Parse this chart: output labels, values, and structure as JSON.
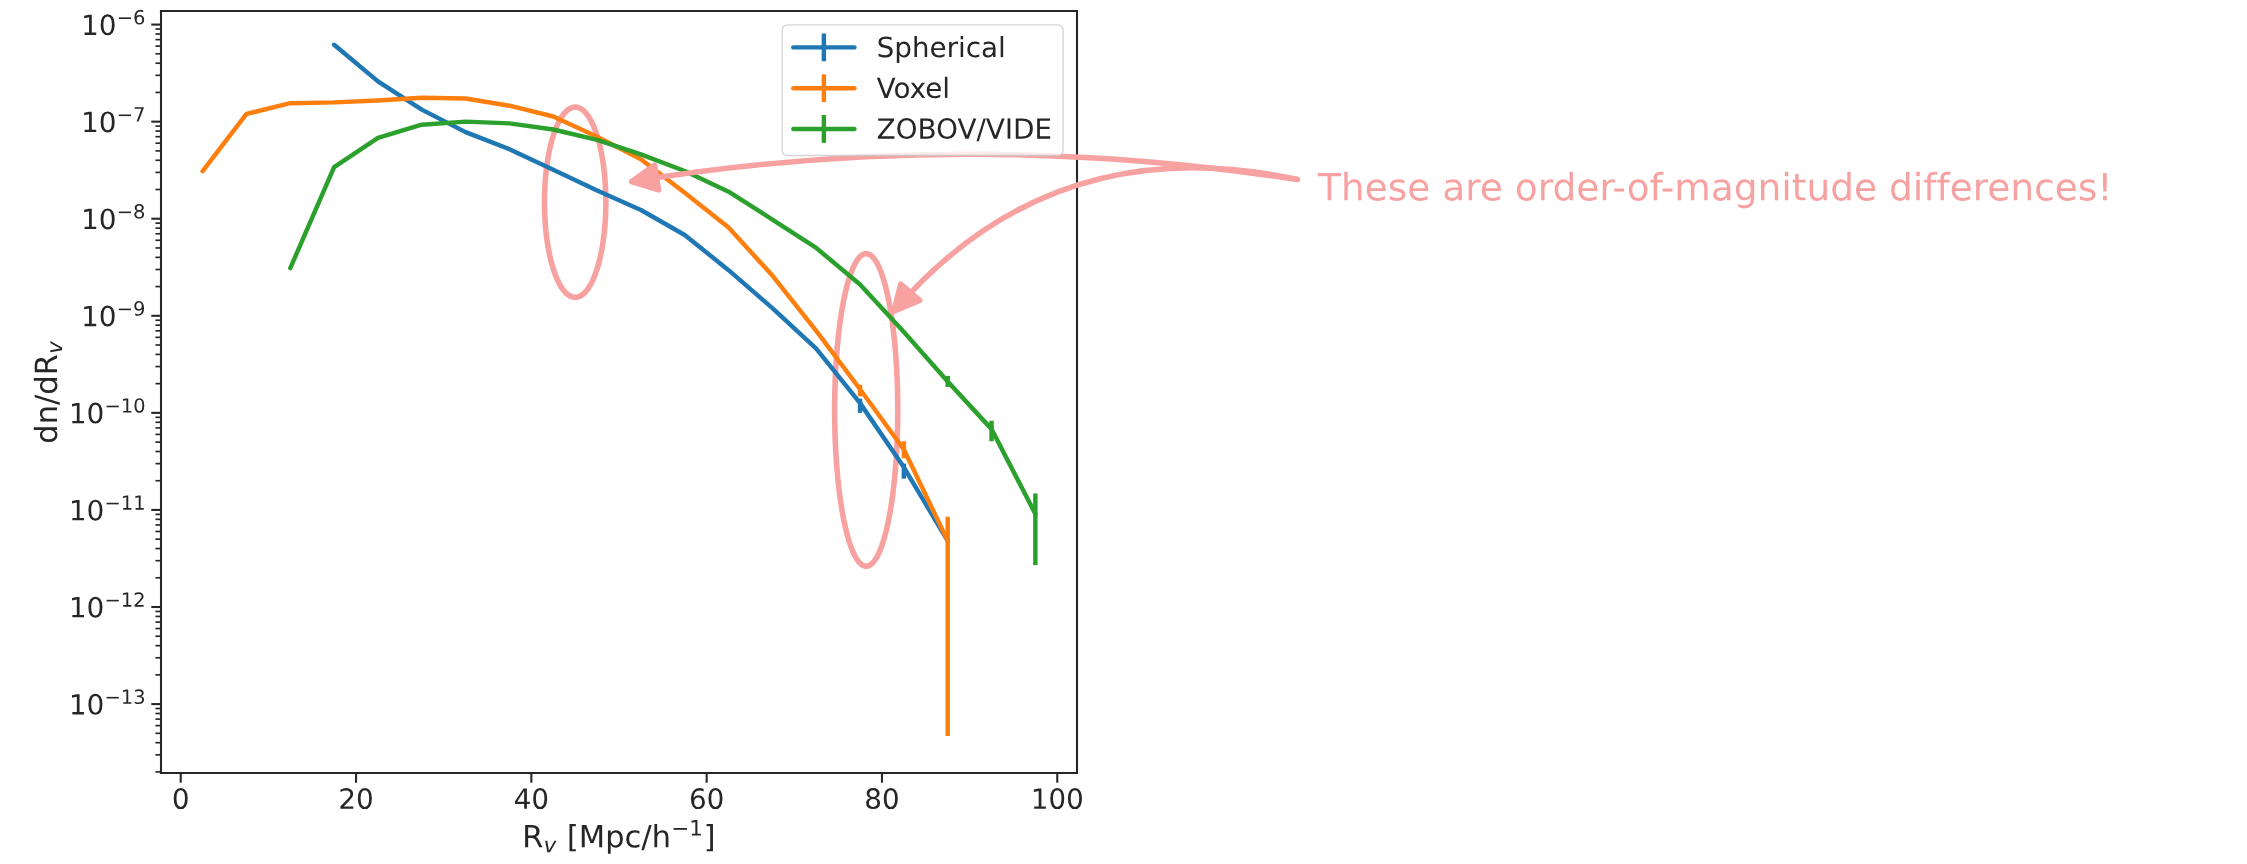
{
  "chart_data": {
    "type": "line",
    "xlabel": "R$_{v}$ [Mpc/h$^{−1}$]",
    "ylabel": "dn/dR$_{v}$",
    "log": "y",
    "grid": false,
    "legend": "top right",
    "xlim": [
      -2.25,
      102.25
    ],
    "xticks": [
      0,
      20,
      40,
      60,
      80,
      100
    ],
    "ylim": [
      1.95e-14,
      1.38e-06
    ],
    "yticks": [
      {
        "value": 1e-13,
        "label": "10$^{−13}$"
      },
      {
        "value": 1e-12,
        "label": "10$^{−12}$"
      },
      {
        "value": 1e-11,
        "label": "10$^{−11}$"
      },
      {
        "value": 1e-10,
        "label": "10$^{−10}$"
      },
      {
        "value": 1e-09,
        "label": "10$^{−9}$"
      },
      {
        "value": 1e-08,
        "label": "10$^{−8}$"
      },
      {
        "value": 1e-07,
        "label": "10$^{−7}$"
      },
      {
        "value": 1e-06,
        "label": "10$^{−6}$"
      }
    ],
    "series": [
      {
        "name": "Spherical",
        "color": "#1f77b4",
        "x": [
          17.5,
          22.5,
          27.5,
          32.5,
          37.5,
          42.5,
          47.5,
          52.5,
          57.5,
          62.5,
          67.5,
          72.5,
          77.5,
          82.5,
          87.5
        ],
        "values": [
          6.2e-07,
          2.6e-07,
          1.33e-07,
          7.8e-08,
          5.2e-08,
          3.2e-08,
          1.95e-08,
          1.23e-08,
          6.8e-09,
          2.95e-09,
          1.2e-09,
          4.6e-10,
          1.26e-10,
          2.75e-11,
          4.8e-12
        ],
        "errors": [
          null,
          null,
          null,
          null,
          null,
          null,
          null,
          null,
          null,
          null,
          null,
          null,
          [
            1e-10,
            1.4e-10
          ],
          [
            2.1e-11,
            3e-11
          ],
          null
        ]
      },
      {
        "name": "Voxel",
        "color": "#ff7f0e",
        "x": [
          2.5,
          7.5,
          12.5,
          17.5,
          22.5,
          27.5,
          32.5,
          37.5,
          42.5,
          47.5,
          52.5,
          57.5,
          62.5,
          67.5,
          72.5,
          77.5,
          82.5,
          87.5
        ],
        "values": [
          3.1e-08,
          1.2e-07,
          1.55e-07,
          1.58e-07,
          1.65e-07,
          1.76e-07,
          1.73e-07,
          1.46e-07,
          1.13e-07,
          7e-08,
          4.1e-08,
          1.85e-08,
          8.1e-09,
          2.6e-09,
          7e-10,
          1.75e-10,
          4.2e-11,
          4.8e-12
        ],
        "errors": [
          null,
          null,
          null,
          null,
          null,
          null,
          null,
          null,
          null,
          null,
          null,
          null,
          null,
          null,
          null,
          [
            1.48e-10,
            1.95e-10
          ],
          [
            3.4e-11,
            5.1e-11
          ],
          [
            4.7e-14,
            8.5e-12
          ]
        ]
      },
      {
        "name": "ZOBOV/VIDE",
        "color": "#2ca02c",
        "x": [
          12.5,
          17.5,
          22.5,
          27.5,
          32.5,
          37.5,
          42.5,
          47.5,
          52.5,
          57.5,
          62.5,
          67.5,
          72.5,
          77.5,
          82.5,
          87.5,
          92.5,
          97.5
        ],
        "values": [
          3.1e-09,
          3.4e-08,
          6.8e-08,
          9.3e-08,
          1e-07,
          9.6e-08,
          8.3e-08,
          6.5e-08,
          4.6e-08,
          3.1e-08,
          1.9e-08,
          9.8e-09,
          5e-09,
          2.1e-09,
          6.8e-10,
          2.1e-10,
          6.8e-11,
          9.1e-12
        ],
        "errors": [
          null,
          null,
          null,
          null,
          null,
          null,
          null,
          null,
          null,
          null,
          null,
          null,
          null,
          null,
          null,
          [
            1.85e-10,
            2.4e-10
          ],
          [
            5.1e-11,
            8.3e-11
          ],
          [
            2.7e-12,
            1.48e-11
          ]
        ]
      }
    ],
    "annotations": [
      "These are order-of-magnitude differences!"
    ]
  }
}
